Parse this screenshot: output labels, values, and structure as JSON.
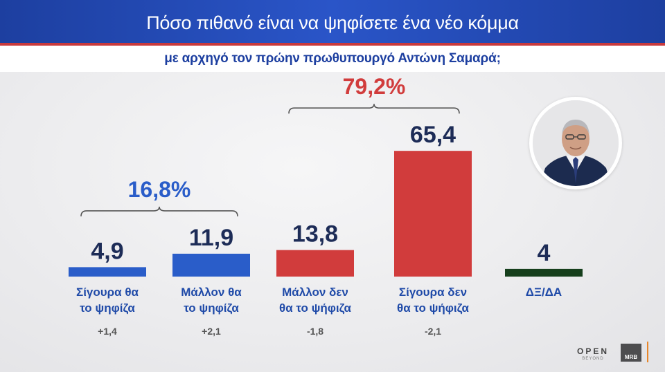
{
  "header": {
    "title": "Πόσο πιθανό είναι να ψηφίσετε ένα νέο κόμμα",
    "subtitle": "με αρχηγό τον πρώην πρωθυπουργό Αντώνη Σαμαρά;"
  },
  "colors": {
    "header_blue": "#2a55c8",
    "accent_red": "#c83a3d",
    "blue": "#2a5dc9",
    "red": "#d13c3c",
    "dark_green": "#163f1c",
    "navy_text": "#1d2c57",
    "label_blue": "#1f4aa8",
    "change_gray": "#555555"
  },
  "chart_data": {
    "type": "bar",
    "title": "Πόσο πιθανό είναι να ψηφίσετε ένα νέο κόμμα",
    "subtitle": "με αρχηγό τον πρώην πρωθυπουργό Αντώνη Σαμαρά;",
    "categories": [
      [
        "Σίγουρα θα",
        "το ψηφίζα"
      ],
      [
        "Μάλλον θα",
        "το ψηφίζα"
      ],
      [
        "Μάλλον δεν",
        "θα το ψήφιζα"
      ],
      [
        "Σίγουρα δεν",
        "θα το ψήφιζα"
      ],
      [
        "ΔΞ/ΔΑ"
      ]
    ],
    "values": [
      4.9,
      11.9,
      13.8,
      65.4,
      4
    ],
    "value_labels": [
      "4,9",
      "11,9",
      "13,8",
      "65,4",
      "4"
    ],
    "changes": [
      "+1,4",
      "+2,1",
      "-1,8",
      "-2,1",
      ""
    ],
    "bar_colors": [
      "#2a5dc9",
      "#2a5dc9",
      "#d13c3c",
      "#d13c3c",
      "#163f1c"
    ],
    "groups": [
      {
        "label": "16,8%",
        "members": [
          0,
          1
        ],
        "color": "#2a5dc9"
      },
      {
        "label": "79,2%",
        "members": [
          2,
          3
        ],
        "color": "#d13c3c"
      }
    ],
    "ylim": [
      0,
      70
    ],
    "grid": false,
    "xlabel": "",
    "ylabel": ""
  },
  "logos": {
    "open_line1": "OPEN",
    "open_line2": "BEYOND",
    "mrb": "MRB"
  }
}
